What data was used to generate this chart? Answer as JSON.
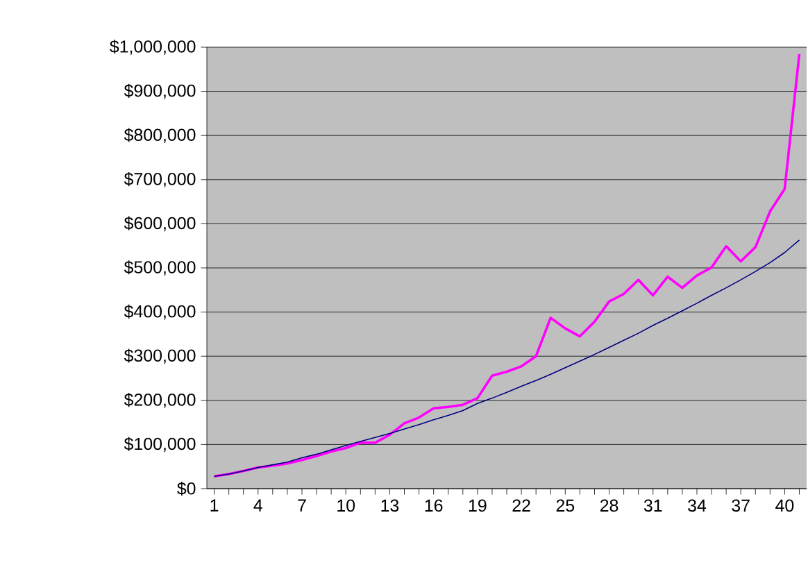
{
  "chart_data": {
    "type": "line",
    "categories": [
      "1",
      null,
      null,
      "4",
      null,
      null,
      "7",
      null,
      null,
      "10",
      null,
      null,
      "13",
      null,
      null,
      "16",
      null,
      null,
      "19",
      null,
      null,
      "22",
      null,
      null,
      "25",
      null,
      null,
      "28",
      null,
      null,
      "31",
      null,
      null,
      "34",
      null,
      null,
      "37",
      null,
      null,
      "40",
      null
    ],
    "series": [
      {
        "color": "#ff00ff",
        "values": [
          28000,
          33000,
          40000,
          48000,
          52000,
          57000,
          65000,
          74000,
          84000,
          92000,
          104000,
          104000,
          122000,
          148000,
          161000,
          182000,
          185000,
          190000,
          205000,
          256000,
          265000,
          277000,
          300000,
          387000,
          363000,
          345000,
          378000,
          424000,
          441000,
          473000,
          438000,
          480000,
          455000,
          483000,
          501000,
          549000,
          515000,
          547000,
          628000,
          679000,
          984000
        ]
      },
      {
        "color": "#000080",
        "values": [
          28000,
          33000,
          40000,
          48000,
          54000,
          60000,
          70000,
          78000,
          88000,
          98000,
          107000,
          116000,
          125000,
          135000,
          145000,
          156000,
          166000,
          177000,
          193000,
          205000,
          218000,
          232000,
          245000,
          259000,
          274000,
          289000,
          304000,
          320000,
          336000,
          352000,
          370000,
          386000,
          403000,
          420000,
          438000,
          455000,
          473000,
          492000,
          512000,
          535000,
          563000
        ]
      }
    ],
    "ylim": [
      0,
      1000000
    ],
    "yticks": [
      {
        "value": 0,
        "label": "$0"
      },
      {
        "value": 100000,
        "label": "$100,000"
      },
      {
        "value": 200000,
        "label": "$200,000"
      },
      {
        "value": 300000,
        "label": "$300,000"
      },
      {
        "value": 400000,
        "label": "$400,000"
      },
      {
        "value": 500000,
        "label": "$500,000"
      },
      {
        "value": 600000,
        "label": "$600,000"
      },
      {
        "value": 700000,
        "label": "$700,000"
      },
      {
        "value": 800000,
        "label": "$800,000"
      },
      {
        "value": 900000,
        "label": "$900,000"
      },
      {
        "value": 1000000,
        "label": "$1,000,000"
      }
    ],
    "grid": "y",
    "marker": "none",
    "line_style": "solid"
  }
}
